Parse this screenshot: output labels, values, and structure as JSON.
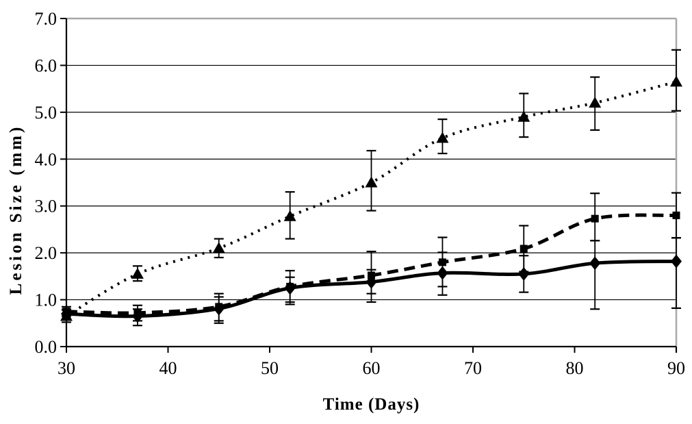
{
  "figure": {
    "background": "#ffffff"
  },
  "chart_data": {
    "type": "line",
    "title": "",
    "xlabel": "Time (Days)",
    "ylabel": "Lesion Size (mm)",
    "xlim": [
      30,
      90
    ],
    "ylim": [
      0.0,
      7.0
    ],
    "x_tick_labels": [
      "30",
      "40",
      "50",
      "60",
      "70",
      "80",
      "90"
    ],
    "y_tick_labels": [
      "0.0",
      "1.0",
      "2.0",
      "3.0",
      "4.0",
      "5.0",
      "6.0",
      "7.0"
    ],
    "grid": "horizontal",
    "legend": "none",
    "error_bars": true,
    "x": [
      30,
      37,
      45,
      52,
      60,
      67,
      75,
      82,
      90
    ],
    "series": [
      {
        "name": "dotted-triangle",
        "marker": "triangle",
        "line_style": "dotted",
        "values": [
          0.65,
          1.55,
          2.1,
          2.78,
          3.5,
          4.45,
          4.9,
          5.2,
          5.65
        ],
        "err_low": [
          0.52,
          1.4,
          1.9,
          2.3,
          2.9,
          4.12,
          4.47,
          4.62,
          5.03
        ],
        "err_high": [
          0.78,
          1.72,
          2.3,
          3.3,
          4.18,
          4.85,
          5.4,
          5.75,
          6.33
        ]
      },
      {
        "name": "dashed-square",
        "marker": "square",
        "line_style": "dashed",
        "values": [
          0.75,
          0.72,
          0.85,
          1.28,
          1.52,
          1.8,
          2.09,
          2.73,
          2.8
        ],
        "err_low": [
          0.65,
          0.55,
          0.55,
          0.95,
          0.95,
          1.28,
          1.6,
          2.26,
          2.32
        ],
        "err_high": [
          0.85,
          0.88,
          1.13,
          1.62,
          2.03,
          2.33,
          2.58,
          3.27,
          3.28
        ]
      },
      {
        "name": "solid-diamond",
        "marker": "diamond",
        "line_style": "solid",
        "values": [
          0.7,
          0.65,
          0.81,
          1.25,
          1.38,
          1.57,
          1.55,
          1.78,
          1.82
        ],
        "err_low": [
          0.6,
          0.45,
          0.5,
          0.9,
          1.13,
          1.1,
          1.16,
          0.8,
          0.82
        ],
        "err_high": [
          0.8,
          0.8,
          1.06,
          1.48,
          1.64,
          2.01,
          1.94,
          2.26,
          2.32
        ]
      }
    ],
    "colors": {
      "series": "#000000",
      "axis": "#000000",
      "gridline": "#000000",
      "frame": "#a8a8a8",
      "background": "#ffffff",
      "text": "#000000"
    }
  }
}
